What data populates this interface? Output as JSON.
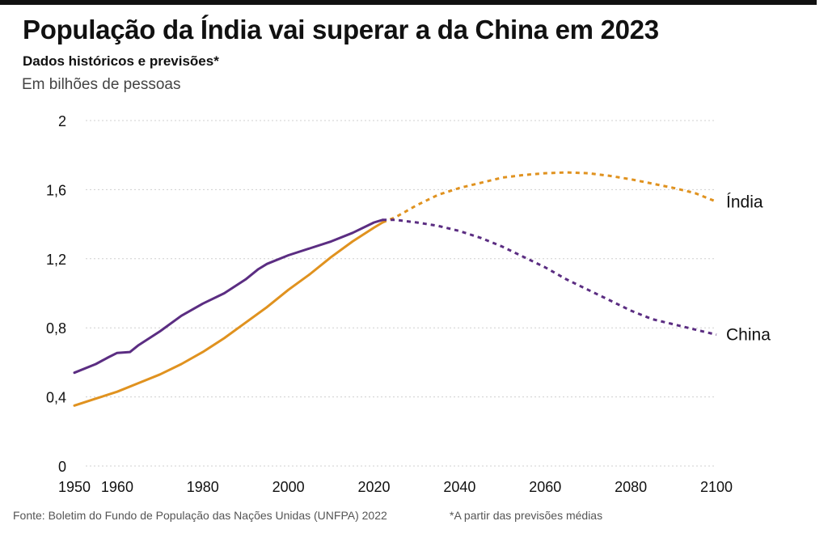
{
  "header": {
    "title": "População da Índia vai superar a da China em 2023",
    "subtitle": "Dados históricos e previsões*",
    "unit": "Em bilhões de pessoas"
  },
  "footer": {
    "source": "Fonte: Boletim do Fundo de População das Nações Unidas (UNFPA) 2022",
    "note": "*A partir das previsões médias"
  },
  "colors": {
    "india": "#e0921f",
    "china": "#5b2d82",
    "grid": "#cfcfcf",
    "text": "#111111"
  },
  "chart_data": {
    "type": "line",
    "title": "População da Índia vai superar a da China em 2023",
    "ylabel": "Em bilhões de pessoas",
    "xlim": [
      1950,
      2100
    ],
    "ylim": [
      0,
      2
    ],
    "y_ticks": [
      0,
      0.4,
      0.8,
      1.2,
      1.6,
      2
    ],
    "y_tick_labels": [
      "0",
      "0,4",
      "0,8",
      "1,2",
      "1,6",
      "2"
    ],
    "x_ticks": [
      1950,
      1960,
      1980,
      2000,
      2020,
      2040,
      2060,
      2080,
      2100
    ],
    "x_tick_labels": [
      "1950",
      "1960",
      "1980",
      "2000",
      "2020",
      "2040",
      "2060",
      "2080",
      "2100"
    ],
    "grid": true,
    "projection_start": 2022,
    "series": [
      {
        "name": "Índia",
        "key": "india",
        "points": [
          [
            1950,
            0.35
          ],
          [
            1955,
            0.39
          ],
          [
            1960,
            0.43
          ],
          [
            1965,
            0.48
          ],
          [
            1970,
            0.53
          ],
          [
            1975,
            0.59
          ],
          [
            1980,
            0.66
          ],
          [
            1985,
            0.74
          ],
          [
            1990,
            0.83
          ],
          [
            1995,
            0.92
          ],
          [
            2000,
            1.02
          ],
          [
            2005,
            1.11
          ],
          [
            2010,
            1.21
          ],
          [
            2015,
            1.3
          ],
          [
            2020,
            1.38
          ],
          [
            2022,
            1.41
          ],
          [
            2025,
            1.44
          ],
          [
            2030,
            1.51
          ],
          [
            2035,
            1.57
          ],
          [
            2040,
            1.61
          ],
          [
            2045,
            1.64
          ],
          [
            2050,
            1.67
          ],
          [
            2055,
            1.685
          ],
          [
            2060,
            1.695
          ],
          [
            2065,
            1.7
          ],
          [
            2070,
            1.695
          ],
          [
            2075,
            1.68
          ],
          [
            2080,
            1.66
          ],
          [
            2085,
            1.635
          ],
          [
            2090,
            1.61
          ],
          [
            2095,
            1.58
          ],
          [
            2100,
            1.53
          ]
        ]
      },
      {
        "name": "China",
        "key": "china",
        "points": [
          [
            1950,
            0.54
          ],
          [
            1955,
            0.59
          ],
          [
            1958,
            0.63
          ],
          [
            1960,
            0.655
          ],
          [
            1963,
            0.66
          ],
          [
            1965,
            0.7
          ],
          [
            1970,
            0.78
          ],
          [
            1975,
            0.87
          ],
          [
            1980,
            0.94
          ],
          [
            1985,
            1.0
          ],
          [
            1990,
            1.08
          ],
          [
            1993,
            1.14
          ],
          [
            1995,
            1.17
          ],
          [
            2000,
            1.22
          ],
          [
            2005,
            1.26
          ],
          [
            2010,
            1.3
          ],
          [
            2015,
            1.35
          ],
          [
            2020,
            1.41
          ],
          [
            2022,
            1.425
          ],
          [
            2025,
            1.425
          ],
          [
            2030,
            1.41
          ],
          [
            2035,
            1.39
          ],
          [
            2040,
            1.36
          ],
          [
            2045,
            1.32
          ],
          [
            2050,
            1.27
          ],
          [
            2055,
            1.21
          ],
          [
            2060,
            1.15
          ],
          [
            2065,
            1.08
          ],
          [
            2070,
            1.02
          ],
          [
            2075,
            0.96
          ],
          [
            2080,
            0.9
          ],
          [
            2085,
            0.85
          ],
          [
            2090,
            0.82
          ],
          [
            2095,
            0.79
          ],
          [
            2100,
            0.76
          ]
        ]
      }
    ]
  }
}
